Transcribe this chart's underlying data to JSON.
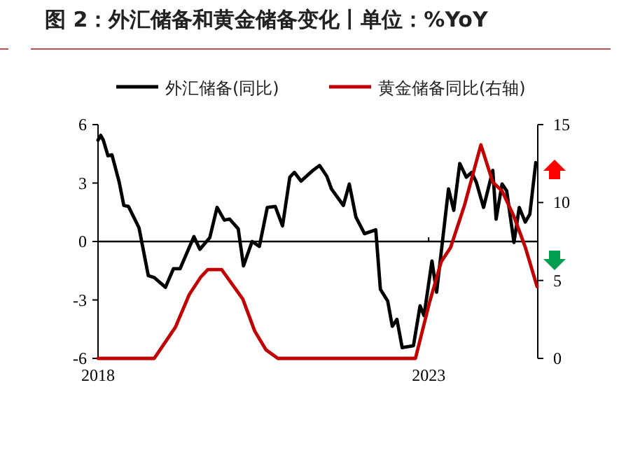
{
  "chart_data": {
    "type": "line",
    "title": "图 2：外汇储备和黄金储备变化丨单位：%YoY",
    "legend": "top",
    "xlim": [
      2018,
      2024.65
    ],
    "xticks": [
      2018,
      2023
    ],
    "ylim": [
      -6,
      6
    ],
    "yticks": [
      -6,
      -3,
      0,
      3,
      6
    ],
    "y2lim": [
      0,
      15
    ],
    "y2ticks": [
      0,
      5,
      10,
      15
    ],
    "ref_lines": [
      {
        "axis": "y",
        "value": 0,
        "color": "#000000"
      }
    ],
    "series": [
      {
        "name": "外汇储备(同比)",
        "color": "#000000",
        "x": [
          2018.0,
          2018.04,
          2018.08,
          2018.15,
          2018.21,
          2018.32,
          2018.39,
          2018.46,
          2018.62,
          2018.76,
          2018.85,
          2019.02,
          2019.14,
          2019.24,
          2019.45,
          2019.54,
          2019.69,
          2019.8,
          2019.91,
          2019.99,
          2020.12,
          2020.2,
          2020.33,
          2020.44,
          2020.56,
          2020.68,
          2020.79,
          2020.9,
          2020.97,
          2021.07,
          2021.25,
          2021.35,
          2021.46,
          2021.53,
          2021.71,
          2021.8,
          2021.9,
          2022.03,
          2022.2,
          2022.27,
          2022.38,
          2022.45,
          2022.52,
          2022.6,
          2022.77,
          2022.87,
          2022.93,
          2023.05,
          2023.12,
          2023.19,
          2023.3,
          2023.38,
          2023.47,
          2023.57,
          2023.65,
          2023.72,
          2023.83,
          2023.97,
          2024.02,
          2024.11,
          2024.18,
          2024.29,
          2024.37,
          2024.46,
          2024.53,
          2024.62
        ],
        "values": [
          5.2,
          5.45,
          5.2,
          4.4,
          4.45,
          3.05,
          1.85,
          1.8,
          0.7,
          -1.75,
          -1.85,
          -2.35,
          -1.4,
          -1.4,
          0.25,
          -0.4,
          0.2,
          1.75,
          1.1,
          1.15,
          0.65,
          -1.25,
          0,
          -0.25,
          1.75,
          1.8,
          0.8,
          3.3,
          3.55,
          3.1,
          3.65,
          3.9,
          3.35,
          2.7,
          1.85,
          2.95,
          1.25,
          0.4,
          0.6,
          -2.45,
          -3.05,
          -4.35,
          -4.0,
          -5.45,
          -5.35,
          -3.3,
          -3.8,
          -1.0,
          -2.6,
          -0.55,
          2.7,
          1.6,
          4.0,
          3.3,
          3.55,
          3.05,
          1.75,
          3.65,
          1.15,
          2.95,
          2.6,
          -0.05,
          1.75,
          1.0,
          1.4,
          4.05
        ]
      },
      {
        "name": "黄金储备同比(右轴)",
        "color": "#c00000",
        "axis": "y2",
        "x": [
          2018.0,
          2018.85,
          2019.17,
          2019.38,
          2019.55,
          2019.66,
          2019.87,
          2020.19,
          2020.37,
          2020.54,
          2020.72,
          2022.8,
          2023.01,
          2023.19,
          2023.33,
          2023.54,
          2023.79,
          2023.97,
          2024.11,
          2024.29,
          2024.46,
          2024.64
        ],
        "values": [
          0,
          0,
          2.0,
          4.1,
          5.2,
          5.7,
          5.7,
          3.8,
          1.75,
          0.55,
          0,
          0,
          3.55,
          6.2,
          7.1,
          9.8,
          13.7,
          11.3,
          10.75,
          9.1,
          7.15,
          4.6
        ]
      }
    ]
  }
}
